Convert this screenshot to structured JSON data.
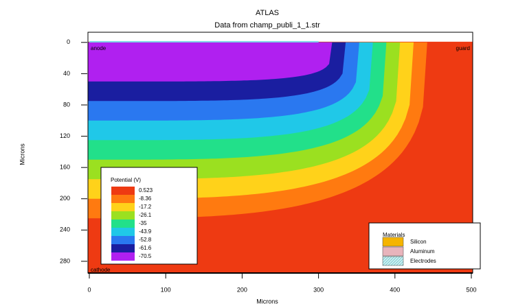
{
  "chart_data": {
    "type": "contour",
    "title": "ATLAS",
    "subtitle": "Data from champ_publi_1_1.str",
    "x_label": "Microns",
    "y_label": "Microns",
    "xlim": [
      0,
      500
    ],
    "ylim": [
      -13,
      295
    ],
    "xticks": [
      0,
      100,
      200,
      300,
      400,
      500
    ],
    "yticks": [
      0,
      40,
      80,
      120,
      160,
      200,
      240,
      280
    ],
    "legend_title": "Potential (V)",
    "levels": [
      0.523,
      -8.36,
      -17.2,
      -26.1,
      -35,
      -43.9,
      -52.8,
      -61.6,
      -70.5
    ],
    "colors": [
      "#ee3a12",
      "#ff7a10",
      "#ffd21a",
      "#9be020",
      "#22e08a",
      "#20c8e8",
      "#2a78f0",
      "#1a1ea0",
      "#b020f0"
    ],
    "annotations": [
      "anode",
      "guard",
      "cathode"
    ],
    "materials_title": "Materials",
    "materials": [
      {
        "name": "Silicon",
        "color": "#f5b400"
      },
      {
        "name": "Aluminum",
        "color": "#e8b4bc"
      },
      {
        "name": "Electrodes",
        "color": "#c8f0f0"
      }
    ]
  }
}
